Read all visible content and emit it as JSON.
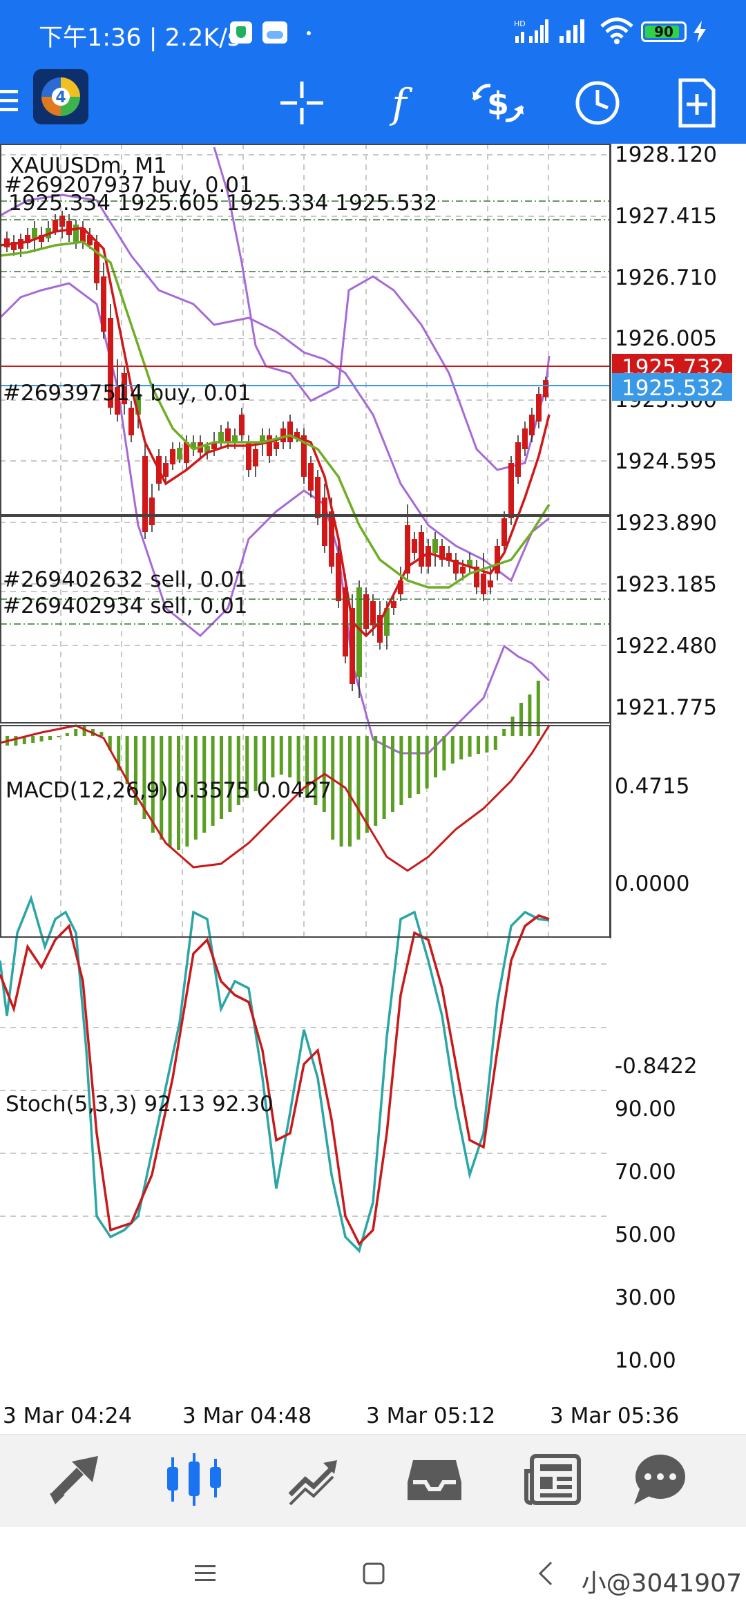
{
  "status_bar": {
    "time": "下午1:36 | 2.2K/s",
    "battery": "90",
    "battery_level": 0.9
  },
  "toolbar": {
    "icons": [
      "menu-icon",
      "mt4-logo-icon",
      "crosshair-icon",
      "indicators-icon",
      "trade-icon",
      "timeframe-icon",
      "add-object-icon"
    ]
  },
  "chart": {
    "title": "XAUUSDm, M1",
    "ohlc": "1925.334 1925.605 1925.334 1925.532",
    "orders": {
      "o1": "#269207937 buy, 0.01",
      "o2": "#269397514 buy, 0.01",
      "o3": "#269402632 sell, 0.01",
      "o4": "#269402934 sell, 0.01"
    },
    "price_axis": [
      "1928.120",
      "1927.415",
      "1926.710",
      "1926.005",
      "1925.300",
      "1924.595",
      "1923.890",
      "1923.185",
      "1922.480",
      "1921.775"
    ],
    "ask_label": "1925.732",
    "bid_label": "1925.532",
    "macd": {
      "title": "MACD(12,26,9) 0.3575 0.0427",
      "axis": [
        "0.4715",
        "0.0000",
        "-0.8422"
      ]
    },
    "stoch": {
      "title": "Stoch(5,3,3) 92.13 92.30",
      "axis": [
        "90.00",
        "70.00",
        "50.00",
        "30.00",
        "10.00"
      ]
    },
    "time_axis": [
      "3 Mar 04:24",
      "3 Mar 04:48",
      "3 Mar 05:12",
      "3 Mar 05:36"
    ],
    "colors": {
      "bull": "#5a9e22",
      "bear": "#d01818",
      "ma_fast": "#d01818",
      "ma_slow": "#6fae24",
      "bands": "#a66ad6",
      "stoch_main": "#2aa6a6",
      "stoch_signal": "#c81a1a",
      "ask_line": "#c81a1a",
      "bid_line": "#3a9ae8"
    }
  },
  "bottom_nav": {
    "items": [
      "quotes-icon",
      "chart-icon",
      "trade-icon",
      "history-icon",
      "news-icon",
      "messages-icon"
    ],
    "active": "chart-icon"
  },
  "system_nav": {
    "watermark": "小@3041907"
  }
}
